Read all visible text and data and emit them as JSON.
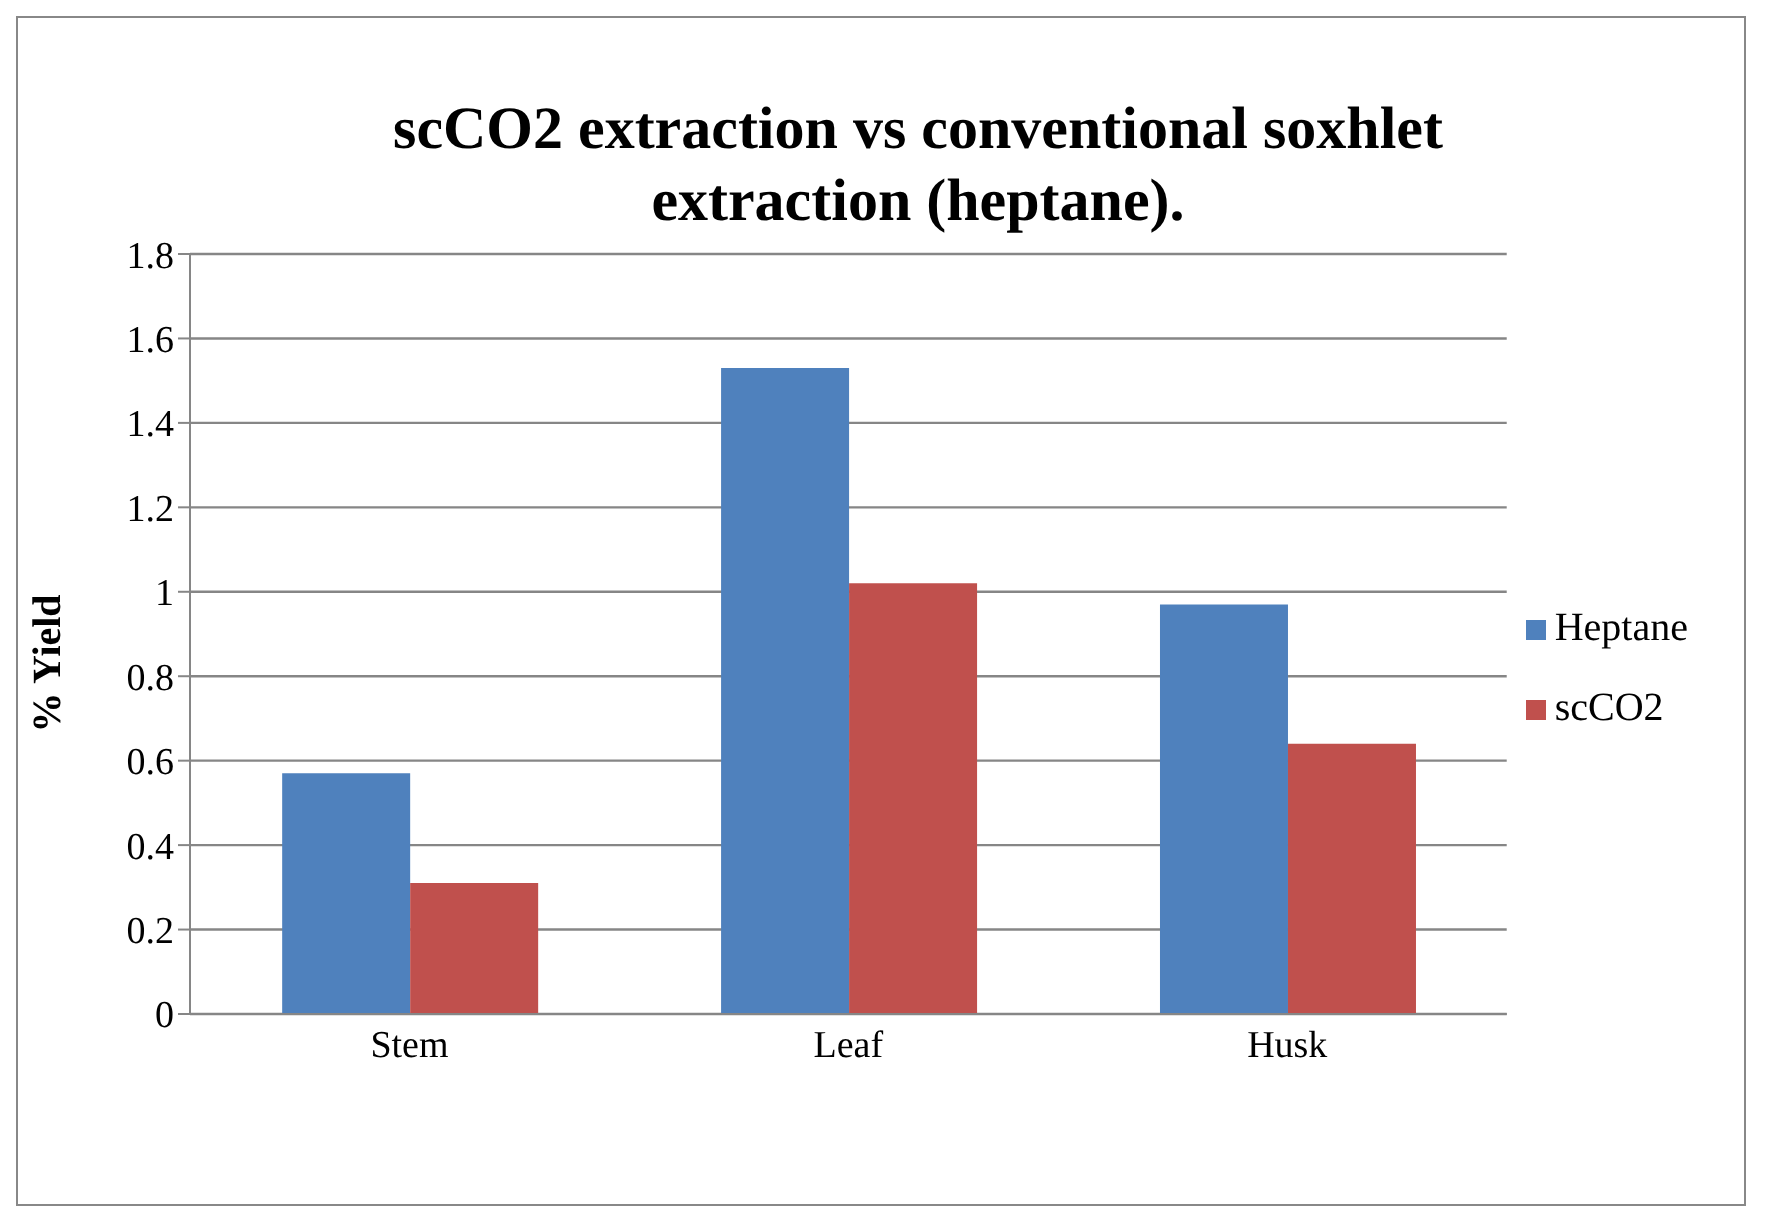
{
  "chart_data": {
    "type": "bar",
    "title": "scCO2 extraction vs conventional soxhlet extraction (heptane).",
    "ylabel": "% Yield",
    "categories": [
      "Stem",
      "Leaf",
      "Husk"
    ],
    "series": [
      {
        "name": "Heptane",
        "color": "#4f81bd",
        "values": [
          0.57,
          1.53,
          0.97
        ]
      },
      {
        "name": "scCO2",
        "color": "#c0504d",
        "values": [
          0.31,
          1.02,
          0.64
        ]
      }
    ],
    "ylim": [
      0,
      1.8
    ],
    "yticks": [
      0,
      0.2,
      0.4,
      0.6,
      0.8,
      1,
      1.2,
      1.4,
      1.6,
      1.8
    ],
    "grid": "y",
    "legend": "right"
  }
}
